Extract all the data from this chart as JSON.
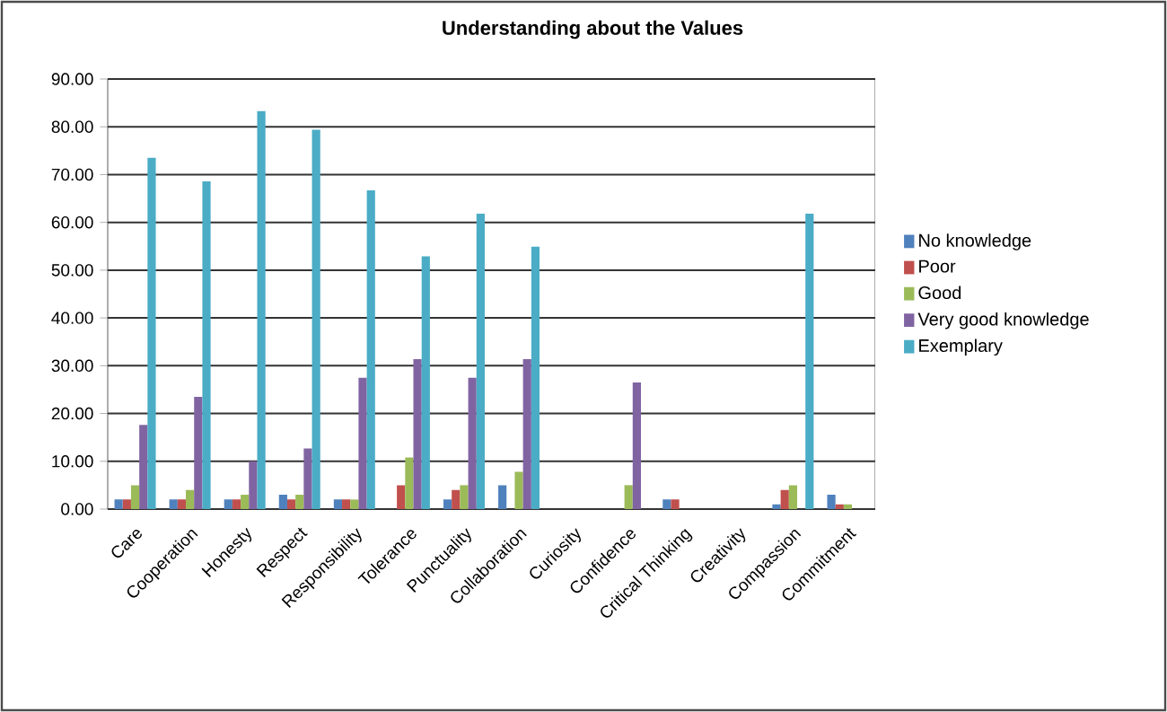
{
  "chart_data": {
    "type": "bar",
    "title": "Understanding about the Values",
    "categories": [
      "Care",
      "Cooperation",
      "Honesty",
      "Respect",
      "Responsibility",
      "Tolerance",
      "Punctuality",
      "Collaboration",
      "Curiosity",
      "Confidence",
      "Critical Thinking",
      "Creativity",
      "Compassion",
      "Commitment"
    ],
    "series": [
      {
        "name": "No knowledge",
        "color": "#4f81bd",
        "values": [
          2,
          2,
          2,
          3,
          2,
          0,
          2,
          5,
          0,
          0,
          2,
          0,
          1,
          3
        ]
      },
      {
        "name": "Poor",
        "color": "#c0504d",
        "values": [
          2,
          2,
          2,
          2,
          2,
          5,
          4,
          0,
          0,
          0,
          2,
          0,
          4,
          1
        ]
      },
      {
        "name": "Good",
        "color": "#9bbb59",
        "values": [
          5,
          4,
          3,
          3,
          2,
          10.8,
          5,
          7.8,
          0,
          5,
          0,
          0,
          5,
          1
        ]
      },
      {
        "name": "Very good knowledge",
        "color": "#8064a2",
        "values": [
          17.6,
          23.5,
          10,
          12.7,
          27.5,
          31.4,
          27.5,
          31.4,
          0,
          26.5,
          0,
          0,
          0,
          0
        ]
      },
      {
        "name": "Exemplary",
        "color": "#4bacc6",
        "values": [
          73.5,
          68.6,
          83.3,
          79.4,
          66.7,
          52.9,
          61.8,
          54.9,
          0,
          0,
          0,
          0,
          61.8,
          0
        ]
      }
    ],
    "ylim": [
      0,
      90
    ],
    "yticks": [
      {
        "value": 0,
        "label": "0.00"
      },
      {
        "value": 10,
        "label": "10.00"
      },
      {
        "value": 20,
        "label": "20.00"
      },
      {
        "value": 30,
        "label": "30.00"
      },
      {
        "value": 40,
        "label": "40.00"
      },
      {
        "value": 50,
        "label": "50.00"
      },
      {
        "value": 60,
        "label": "60.00"
      },
      {
        "value": 70,
        "label": "70.00"
      },
      {
        "value": 80,
        "label": "80.00"
      },
      {
        "value": 90,
        "label": "90.00"
      }
    ],
    "grid": "y",
    "legend": "right"
  }
}
